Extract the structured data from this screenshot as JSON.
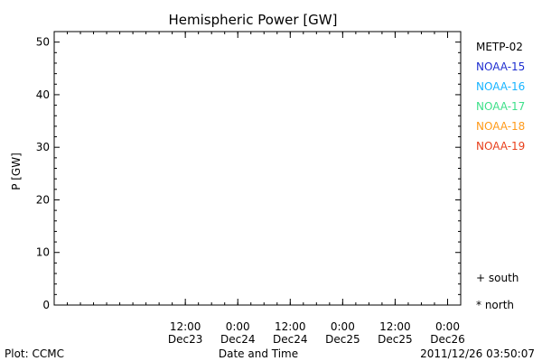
{
  "chart_data": {
    "type": "scatter",
    "title": "Hemispheric Power [GW]",
    "xlabel": "Date and Time",
    "ylabel": "P [GW]",
    "ylim": [
      0,
      52
    ],
    "xlim": [
      "2011-12-22T06:00",
      "2011-12-26T03:00"
    ],
    "y_ticks": [
      0,
      10,
      20,
      30,
      40,
      50
    ],
    "x_ticks": [
      {
        "time": "2011-12-23T12:00",
        "label_top": "12:00",
        "label_bottom": "Dec23"
      },
      {
        "time": "2011-12-24T00:00",
        "label_top": "0:00",
        "label_bottom": "Dec24"
      },
      {
        "time": "2011-12-24T12:00",
        "label_top": "12:00",
        "label_bottom": "Dec24"
      },
      {
        "time": "2011-12-25T00:00",
        "label_top": "0:00",
        "label_bottom": "Dec25"
      },
      {
        "time": "2011-12-25T12:00",
        "label_top": "12:00",
        "label_bottom": "Dec25"
      },
      {
        "time": "2011-12-26T00:00",
        "label_top": "0:00",
        "label_bottom": "Dec26"
      }
    ],
    "markers": [
      {
        "symbol": "+",
        "label": "south"
      },
      {
        "symbol": "*",
        "label": "north"
      }
    ],
    "series": [
      {
        "name": "METP-02",
        "color": "#000000"
      },
      {
        "name": "NOAA-15",
        "color": "#1e2fd0"
      },
      {
        "name": "NOAA-16",
        "color": "#18b4ff"
      },
      {
        "name": "NOAA-17",
        "color": "#3ee08a"
      },
      {
        "name": "NOAA-18",
        "color": "#ff9a1a"
      },
      {
        "name": "NOAA-19",
        "color": "#e8401c"
      }
    ]
  },
  "footer": {
    "left": "Plot: CCMC",
    "right": "2011/12/26 03:50:07"
  }
}
